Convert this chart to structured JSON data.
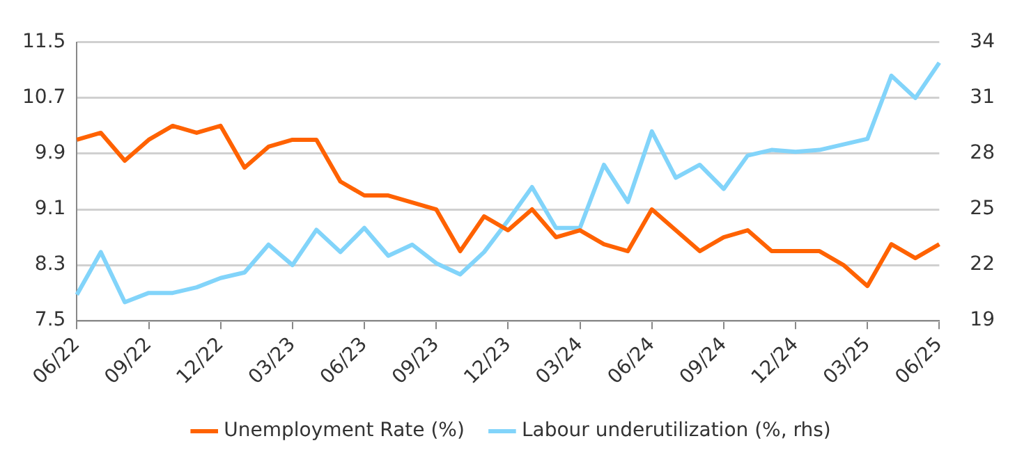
{
  "chart_data": {
    "type": "line",
    "categories": [
      "06/22",
      null,
      null,
      "09/22",
      null,
      null,
      "12/22",
      null,
      null,
      "03/23",
      null,
      null,
      "06/23",
      null,
      null,
      "09/23",
      null,
      null,
      "12/23",
      null,
      null,
      "03/24",
      null,
      null,
      "06/24",
      null,
      null,
      "09/24",
      null,
      null,
      "12/24",
      null,
      null,
      "03/25",
      null,
      null,
      "06/25"
    ],
    "series": [
      {
        "name": "Unemployment Rate (%)",
        "color": "#ff6200",
        "values": [
          10.1,
          10.2,
          9.8,
          10.1,
          10.3,
          10.2,
          10.3,
          9.7,
          10.0,
          10.1,
          10.1,
          9.5,
          9.3,
          9.3,
          9.2,
          9.1,
          8.5,
          9.0,
          8.8,
          9.1,
          8.7,
          8.8,
          8.6,
          8.5,
          9.1,
          8.8,
          8.5,
          8.7,
          8.8,
          8.5,
          8.5,
          8.5,
          8.3,
          8.0,
          8.6,
          8.4,
          8.6
        ]
      },
      {
        "name": "Labour underutilization (%, rhs)",
        "color": "#82d4fa",
        "axis": "y2",
        "values": [
          20.4,
          22.7,
          20.0,
          20.5,
          20.5,
          20.8,
          21.3,
          21.6,
          23.1,
          22.0,
          23.9,
          22.7,
          24.0,
          22.5,
          23.1,
          22.1,
          21.5,
          22.7,
          24.4,
          26.2,
          24.0,
          24.0,
          27.4,
          25.4,
          29.2,
          26.7,
          27.4,
          26.1,
          27.9,
          28.2,
          28.1,
          28.2,
          28.5,
          28.8,
          32.2,
          31.0,
          32.9
        ]
      }
    ],
    "ylim": [
      7.5,
      11.5
    ],
    "yticks": [
      7.5,
      8.3,
      9.1,
      9.9,
      10.7,
      11.5
    ],
    "y2lim": [
      19,
      34
    ],
    "y2ticks": [
      19,
      22,
      25,
      28,
      31,
      34
    ],
    "grid": "y",
    "legend": "bottom",
    "marker": "none",
    "line_style": "solid"
  }
}
